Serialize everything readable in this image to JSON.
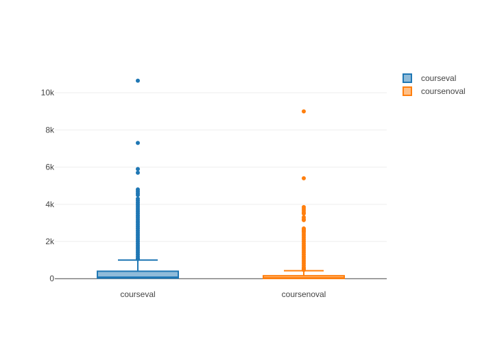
{
  "chart_data": {
    "type": "box",
    "title": "",
    "xlabel": "",
    "ylabel": "",
    "categories": [
      "courseval",
      "coursenoval"
    ],
    "y_ticks": [
      0,
      2000,
      4000,
      6000,
      8000,
      10000
    ],
    "y_tick_labels": [
      "0",
      "2k",
      "4k",
      "6k",
      "8k",
      "10k"
    ],
    "ylim": [
      -250,
      11300
    ],
    "grid": true,
    "legend_position": "top-right",
    "series": [
      {
        "name": "courseval",
        "color": "#1f77b4",
        "fill": "#8fbbd9",
        "min": 0,
        "q1": 30,
        "median": 80,
        "q3": 400,
        "upper_fence": 1000,
        "outliers": [
          10650,
          7300,
          5900,
          5700,
          4800,
          4700,
          4600,
          4500,
          4300,
          4200,
          4100,
          4000,
          3900,
          3800,
          3700,
          3600,
          3500,
          3400,
          3300,
          3200,
          3100,
          3000,
          2900,
          2800,
          2700,
          2600,
          2500,
          2400,
          2300,
          2200,
          2100,
          2000,
          1900,
          1800,
          1700,
          1600,
          1500,
          1400,
          1300,
          1200,
          1100,
          1050
        ]
      },
      {
        "name": "coursenoval",
        "color": "#ff7f0e",
        "fill": "#ffbf86",
        "min": 0,
        "q1": 10,
        "median": 50,
        "q3": 160,
        "upper_fence": 430,
        "outliers": [
          9000,
          5400,
          3850,
          3750,
          3650,
          3550,
          3500,
          3300,
          3200,
          3150,
          2700,
          2650,
          2600,
          2550,
          2500,
          2400,
          2300,
          2200,
          2100,
          2000,
          1900,
          1800,
          1700,
          1600,
          1500,
          1400,
          1300,
          1200,
          1100,
          1000,
          900,
          800,
          700,
          600,
          550,
          500,
          470
        ]
      }
    ]
  }
}
